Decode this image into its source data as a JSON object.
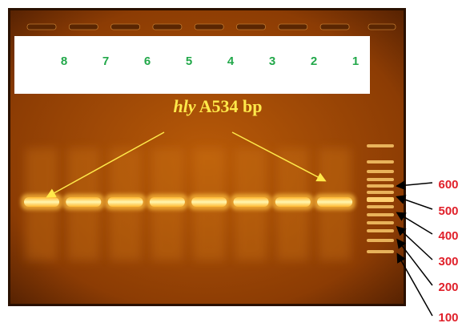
{
  "lanes": [
    "8",
    "7",
    "6",
    "5",
    "4",
    "3",
    "2",
    "1"
  ],
  "annotation": {
    "gene": "hly",
    "size": "A534 bp"
  },
  "ladder_labels": [
    "600",
    "500",
    "400",
    "300",
    "200",
    "100"
  ]
}
